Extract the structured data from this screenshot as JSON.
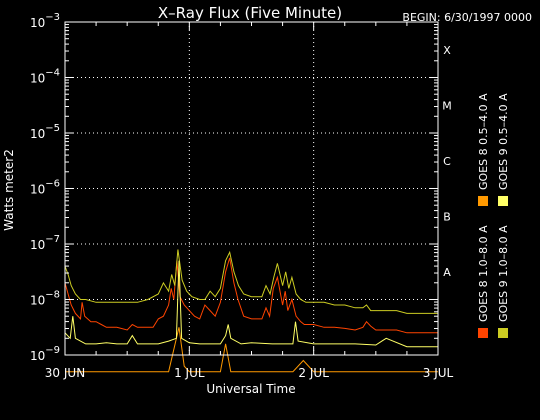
{
  "chart_data": {
    "type": "line",
    "title": "X–Ray Flux (Five Minute)",
    "subtitle": "BEGIN: 6/30/1997 0000",
    "xlabel": "Universal Time",
    "ylabel": "Watts meter2",
    "x_unit": "hours since 6/30/1997 0000 UT",
    "xlim": [
      0,
      72
    ],
    "ylim_log10": [
      -9,
      -3
    ],
    "y_scale": "log",
    "y_tick_exponents": [
      -9,
      -8,
      -7,
      -6,
      -5,
      -4,
      -3
    ],
    "y_tick_base": "10",
    "x_ticks": [
      {
        "value": 0,
        "label": "30 JUN"
      },
      {
        "value": 24,
        "label": "1 JUL"
      },
      {
        "value": 48,
        "label": "2 JUL"
      },
      {
        "value": 72,
        "label": "3 JUL"
      }
    ],
    "flare_classes": [
      {
        "label": "A",
        "log10": -8
      },
      {
        "label": "B",
        "log10": -7
      },
      {
        "label": "C",
        "log10": -6
      },
      {
        "label": "M",
        "log10": -5
      },
      {
        "label": "X",
        "log10": -4
      }
    ],
    "grid": true,
    "legend_placement": "right",
    "series": [
      {
        "name": "GOES 8 1.0–8.0 A",
        "color": "#ff4400",
        "x": [
          0,
          0.6,
          1.2,
          2,
          3,
          3.3,
          3.8,
          5,
          6,
          7,
          8,
          9,
          10,
          12,
          13,
          14,
          16,
          17,
          18,
          19,
          20,
          20.5,
          21,
          21.6,
          22.2,
          23,
          24,
          25,
          26,
          27,
          28,
          29,
          30,
          31,
          31.8,
          32.6,
          33.4,
          34.5,
          36,
          38,
          38.8,
          39.5,
          40.2,
          41,
          42,
          42.5,
          43,
          43.8,
          44.6,
          45.5,
          46.2,
          47,
          48,
          50,
          52,
          54,
          56,
          57.5,
          58.2,
          59,
          60,
          62,
          64,
          66,
          68,
          70,
          72
        ],
        "log10": [
          -7.7,
          -7.9,
          -8.1,
          -8.25,
          -8.35,
          -8.05,
          -8.3,
          -8.4,
          -8.4,
          -8.45,
          -8.5,
          -8.5,
          -8.5,
          -8.55,
          -8.45,
          -8.5,
          -8.5,
          -8.5,
          -8.35,
          -8.3,
          -8.1,
          -7.8,
          -8.0,
          -7.3,
          -7.95,
          -8.1,
          -8.2,
          -8.3,
          -8.35,
          -8.1,
          -8.2,
          -8.3,
          -8.05,
          -7.5,
          -7.25,
          -7.7,
          -8.0,
          -8.3,
          -8.35,
          -8.35,
          -8.15,
          -8.3,
          -7.8,
          -7.6,
          -8.1,
          -7.85,
          -8.2,
          -8.0,
          -8.3,
          -8.4,
          -8.45,
          -8.45,
          -8.45,
          -8.5,
          -8.5,
          -8.52,
          -8.55,
          -8.5,
          -8.4,
          -8.48,
          -8.55,
          -8.55,
          -8.55,
          -8.6,
          -8.6,
          -8.6,
          -8.6
        ]
      },
      {
        "name": "GOES 8 0.5–4.0 A",
        "color": "#ff9900",
        "x": [
          0,
          5,
          10,
          20,
          22,
          23,
          24,
          30,
          31,
          32,
          36,
          44,
          46,
          48,
          60,
          66,
          72
        ],
        "log10": [
          -9.3,
          -9.3,
          -9.3,
          -9.3,
          -8.5,
          -9.2,
          -9.3,
          -9.3,
          -8.8,
          -9.3,
          -9.3,
          -9.3,
          -9.1,
          -9.3,
          -9.3,
          -9.3,
          -9.3
        ]
      },
      {
        "name": "GOES 9 1.0–8.0 A",
        "color": "#cccc22",
        "x": [
          0,
          0.6,
          1.2,
          2,
          3,
          4,
          6,
          8,
          10,
          12,
          14,
          16,
          18,
          19,
          20,
          20.6,
          21.2,
          21.8,
          22.6,
          23.5,
          24.5,
          26,
          27,
          28,
          29,
          30,
          31,
          31.8,
          32.6,
          33.5,
          34.5,
          36,
          38,
          38.8,
          39.6,
          40.3,
          41,
          42,
          42.6,
          43.2,
          43.8,
          44.6,
          45.5,
          46.5,
          48,
          50,
          52,
          54,
          56,
          57.5,
          58.2,
          59,
          60,
          62,
          64,
          66,
          68,
          70,
          72
        ],
        "log10": [
          -7.4,
          -7.55,
          -7.75,
          -7.9,
          -8.0,
          -8.0,
          -8.05,
          -8.05,
          -8.05,
          -8.05,
          -8.05,
          -8.0,
          -7.9,
          -7.7,
          -7.85,
          -7.55,
          -7.75,
          -7.1,
          -7.65,
          -7.85,
          -7.95,
          -8.0,
          -8.0,
          -7.85,
          -7.95,
          -7.8,
          -7.3,
          -7.15,
          -7.5,
          -7.75,
          -7.9,
          -7.95,
          -7.95,
          -7.75,
          -7.9,
          -7.6,
          -7.35,
          -7.75,
          -7.5,
          -7.8,
          -7.6,
          -7.9,
          -8.0,
          -8.05,
          -8.05,
          -8.05,
          -8.1,
          -8.1,
          -8.15,
          -8.15,
          -8.1,
          -8.2,
          -8.2,
          -8.2,
          -8.2,
          -8.25,
          -8.25,
          -8.25,
          -8.25
        ]
      },
      {
        "name": "GOES 9 0.5–4.0 A",
        "color": "#ffff66",
        "x": [
          0,
          1,
          1.5,
          2,
          4,
          6,
          8,
          10,
          12,
          13,
          14,
          18,
          20,
          21.5,
          22,
          22.5,
          24,
          26,
          28,
          30,
          31,
          31.5,
          32,
          34,
          36,
          40,
          44,
          44.5,
          45,
          48,
          52,
          56,
          60,
          62,
          66,
          70,
          72
        ],
        "log10": [
          -8.6,
          -8.7,
          -8.3,
          -8.7,
          -8.8,
          -8.8,
          -8.78,
          -8.8,
          -8.8,
          -8.65,
          -8.8,
          -8.8,
          -8.75,
          -8.7,
          -7.3,
          -8.7,
          -8.78,
          -8.8,
          -8.8,
          -8.8,
          -8.65,
          -8.45,
          -8.7,
          -8.8,
          -8.78,
          -8.8,
          -8.8,
          -8.4,
          -8.75,
          -8.8,
          -8.8,
          -8.8,
          -8.82,
          -8.7,
          -8.85,
          -8.85,
          -8.85
        ]
      }
    ]
  }
}
